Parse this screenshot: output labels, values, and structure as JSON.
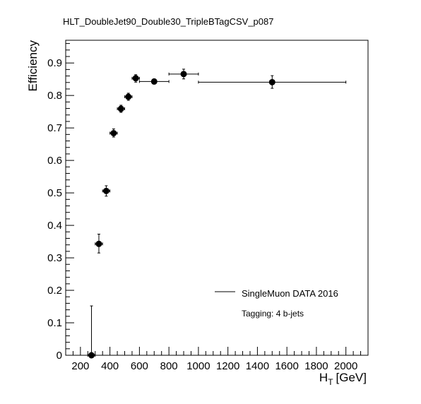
{
  "chart_data": {
    "type": "scatter",
    "title": "HLT_DoubleJet90_Double30_TripleBTagCSV_p087",
    "xlabel_main": "H",
    "xlabel_sub": "T",
    "xlabel_unit": "[GeV]",
    "ylabel": "Efficiency",
    "xlim": [
      100,
      2150
    ],
    "ylim": [
      0,
      0.97
    ],
    "xticks": [
      200,
      400,
      600,
      800,
      1000,
      1200,
      1400,
      1600,
      1800,
      2000
    ],
    "yticks": [
      0,
      0.1,
      0.2,
      0.3,
      0.4,
      0.5,
      0.6,
      0.7,
      0.8,
      0.9
    ],
    "legend_position": "bottom-right",
    "series": [
      {
        "name": "SingleMuon DATA 2016",
        "points": [
          {
            "x": 275,
            "xlo": 250,
            "xhi": 300,
            "y": 0.0,
            "ylo": 0.0,
            "yhi": 0.152
          },
          {
            "x": 325,
            "xlo": 300,
            "xhi": 350,
            "y": 0.343,
            "ylo": 0.315,
            "yhi": 0.373
          },
          {
            "x": 375,
            "xlo": 350,
            "xhi": 400,
            "y": 0.506,
            "ylo": 0.49,
            "yhi": 0.522
          },
          {
            "x": 425,
            "xlo": 400,
            "xhi": 450,
            "y": 0.684,
            "ylo": 0.672,
            "yhi": 0.697
          },
          {
            "x": 475,
            "xlo": 450,
            "xhi": 500,
            "y": 0.759,
            "ylo": 0.748,
            "yhi": 0.77
          },
          {
            "x": 525,
            "xlo": 500,
            "xhi": 550,
            "y": 0.796,
            "ylo": 0.785,
            "yhi": 0.807
          },
          {
            "x": 575,
            "xlo": 550,
            "xhi": 600,
            "y": 0.853,
            "ylo": 0.841,
            "yhi": 0.864
          },
          {
            "x": 700,
            "xlo": 600,
            "xhi": 800,
            "y": 0.843,
            "ylo": 0.835,
            "yhi": 0.851
          },
          {
            "x": 900,
            "xlo": 800,
            "xhi": 1000,
            "y": 0.866,
            "ylo": 0.851,
            "yhi": 0.881
          },
          {
            "x": 1500,
            "xlo": 1000,
            "xhi": 2000,
            "y": 0.841,
            "ylo": 0.822,
            "yhi": 0.861
          }
        ]
      }
    ],
    "annotation": "Tagging: 4 b-jets"
  }
}
